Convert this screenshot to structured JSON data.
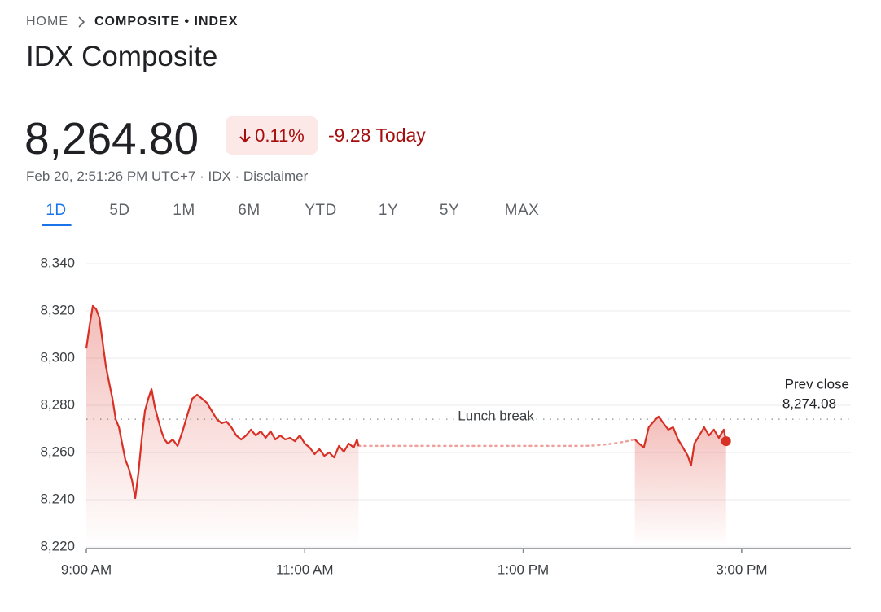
{
  "breadcrumb": {
    "home": "HOME",
    "current": "COMPOSITE • INDEX"
  },
  "title": "IDX Composite",
  "quote": {
    "price": "8,264.80",
    "change_percent": "0.11%",
    "change": "-9.28 Today",
    "details": "Feb 20, 2:51:26 PM UTC+7 · IDX · Disclaimer"
  },
  "tabs": [
    "1D",
    "5D",
    "1M",
    "6M",
    "YTD",
    "1Y",
    "5Y",
    "MAX"
  ],
  "selected_tab": "1D",
  "chart_data": {
    "type": "line",
    "x": [
      9.0,
      9.03,
      9.06,
      9.09,
      9.119,
      9.149,
      9.179,
      9.209,
      9.239,
      9.269,
      9.299,
      9.328,
      9.358,
      9.388,
      9.418,
      9.448,
      9.478,
      9.507,
      9.537,
      9.567,
      9.597,
      9.627,
      9.657,
      9.687,
      9.716,
      9.746,
      9.791,
      9.836,
      9.881,
      9.925,
      9.97,
      10.015,
      10.06,
      10.104,
      10.149,
      10.194,
      10.239,
      10.284,
      10.328,
      10.373,
      10.418,
      10.463,
      10.507,
      10.552,
      10.597,
      10.642,
      10.687,
      10.731,
      10.776,
      10.821,
      10.866,
      10.91,
      10.955,
      11.0,
      11.045,
      11.09,
      11.134,
      11.179,
      11.224,
      11.269,
      11.313,
      11.358,
      11.403,
      11.448,
      11.478,
      11.493,
      null,
      14.022,
      14.06,
      14.104,
      14.149,
      14.194,
      14.239,
      14.284,
      14.328,
      14.373,
      14.418,
      14.463,
      14.507,
      14.537,
      14.567,
      14.612,
      14.657,
      14.701,
      14.746,
      14.791,
      14.836,
      14.857
    ],
    "series": [
      {
        "name": "IDX Composite",
        "color": "#d93025",
        "values": [
          8304.1,
          8313.8,
          8322.1,
          8320.7,
          8317.2,
          8306.9,
          8296.6,
          8289.7,
          8282.8,
          8274.1,
          8270.7,
          8263.8,
          8256.9,
          8253.4,
          8248.3,
          8240.7,
          8251.7,
          8265.5,
          8277.6,
          8282.8,
          8286.9,
          8279.3,
          8274.1,
          8269.0,
          8265.5,
          8263.8,
          8265.5,
          8262.8,
          8269.0,
          8275.9,
          8282.8,
          8284.5,
          8282.8,
          8281.0,
          8277.6,
          8274.1,
          8272.4,
          8273.1,
          8270.7,
          8267.2,
          8265.5,
          8267.2,
          8269.7,
          8267.2,
          8269.0,
          8266.2,
          8269.0,
          8265.5,
          8267.2,
          8265.5,
          8266.2,
          8264.8,
          8267.2,
          8263.8,
          8262.1,
          8259.3,
          8261.4,
          8258.6,
          8260.0,
          8257.9,
          8262.8,
          8260.3,
          8263.8,
          8262.1,
          8265.5,
          8262.8,
          null,
          8265.5,
          8263.8,
          8262.1,
          8270.7,
          8273.1,
          8275.2,
          8272.4,
          8269.7,
          8270.7,
          8265.5,
          8262.1,
          8258.6,
          8254.5,
          8263.8,
          8267.2,
          8270.7,
          8267.2,
          8269.7,
          8266.2,
          8269.7,
          8264.8
        ]
      }
    ],
    "xlim": [
      9,
      16
    ],
    "xticks": [
      {
        "value": 9,
        "label": "9:00 AM"
      },
      {
        "value": 11,
        "label": "11:00 AM"
      },
      {
        "value": 13,
        "label": "1:00 PM"
      },
      {
        "value": 15,
        "label": "3:00 PM"
      }
    ],
    "ylim": [
      8220,
      8340
    ],
    "yticks": [
      {
        "value": 8220,
        "label": "8,220"
      },
      {
        "value": 8240,
        "label": "8,240"
      },
      {
        "value": 8260,
        "label": "8,260"
      },
      {
        "value": 8280,
        "label": "8,280"
      },
      {
        "value": 8300,
        "label": "8,300"
      },
      {
        "value": 8320,
        "label": "8,320"
      },
      {
        "value": 8340,
        "label": "8,340"
      }
    ],
    "grid": true,
    "gap_label": "Lunch break",
    "reference_line": {
      "name": "Prev close",
      "value": 8274.08,
      "value_label": "8,274.08"
    }
  }
}
